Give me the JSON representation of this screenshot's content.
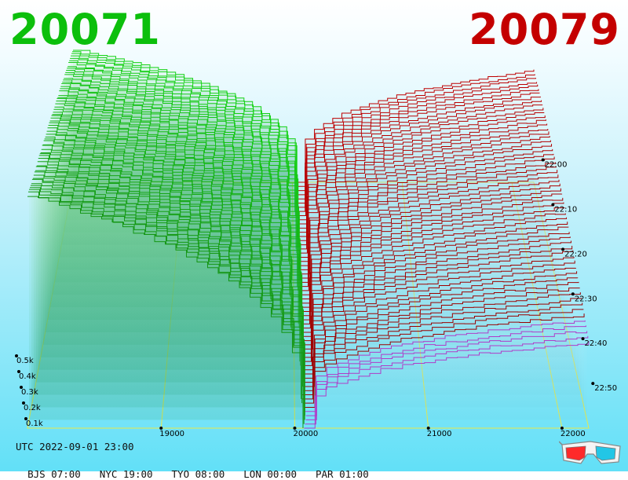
{
  "header": {
    "left_price": "20071",
    "right_price": "20079",
    "left_color": "#0cbf0c",
    "right_color": "#c40000"
  },
  "footer": {
    "utc": "UTC 2022-09-01 23:00",
    "timezones": [
      "BJS 07:00",
      "NYC 19:00",
      "TYO 08:00",
      "LON 00:00",
      "PAR 01:00"
    ]
  },
  "icons": {
    "corner": "3d-glasses-icon"
  },
  "chart_data": {
    "type": "3d-depth-chart",
    "title": "",
    "x_axis": {
      "label": "",
      "ticks": [
        19000,
        20000,
        21000,
        22000
      ],
      "tick_labels": [
        "19000",
        "20000",
        "21000",
        "22000"
      ],
      "range": [
        18000,
        22200
      ]
    },
    "y_axis": {
      "label": "",
      "ticks": [
        "22:00",
        "22:10",
        "22:20",
        "22:30",
        "22:40",
        "22:50"
      ],
      "range": [
        "21:55",
        "23:00"
      ]
    },
    "z_axis": {
      "label": "",
      "ticks": [
        100,
        200,
        300,
        400,
        500
      ],
      "tick_labels": [
        "0.1k",
        "0.2k",
        "0.3k",
        "0.4k",
        "0.5k"
      ]
    },
    "series": [
      {
        "side": "bid",
        "color": "#10b010",
        "price_range": [
          18000,
          20000
        ],
        "max_depth": 700
      },
      {
        "side": "ask",
        "color": "#a80000",
        "price_range": [
          20000,
          22200
        ],
        "max_depth": 590
      }
    ],
    "best_bid_last": 20071,
    "best_ask_last": 20079,
    "slices": 60,
    "grid": true
  }
}
